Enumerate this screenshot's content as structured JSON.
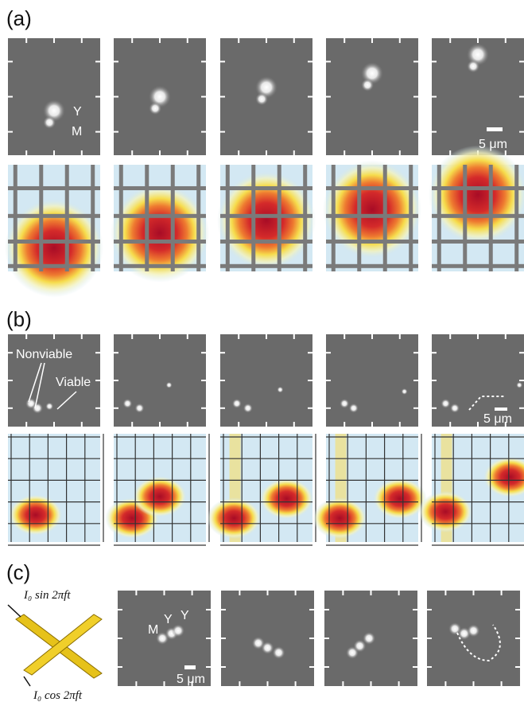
{
  "panel_a": {
    "label": "(a)",
    "cell_labels": [
      "Y",
      "M"
    ],
    "scale_bar": "5 μm"
  },
  "panel_b": {
    "label": "(b)",
    "cell_labels": [
      "Nonviable",
      "Viable"
    ],
    "scale_bar": "5 μm"
  },
  "panel_c": {
    "label": "(c)",
    "cell_labels": [
      "M",
      "Y",
      "Y"
    ],
    "scale_bar": "5 μm",
    "wire_labels": [
      "I₀ sin 2πft",
      "I₀ cos 2πft"
    ]
  }
}
